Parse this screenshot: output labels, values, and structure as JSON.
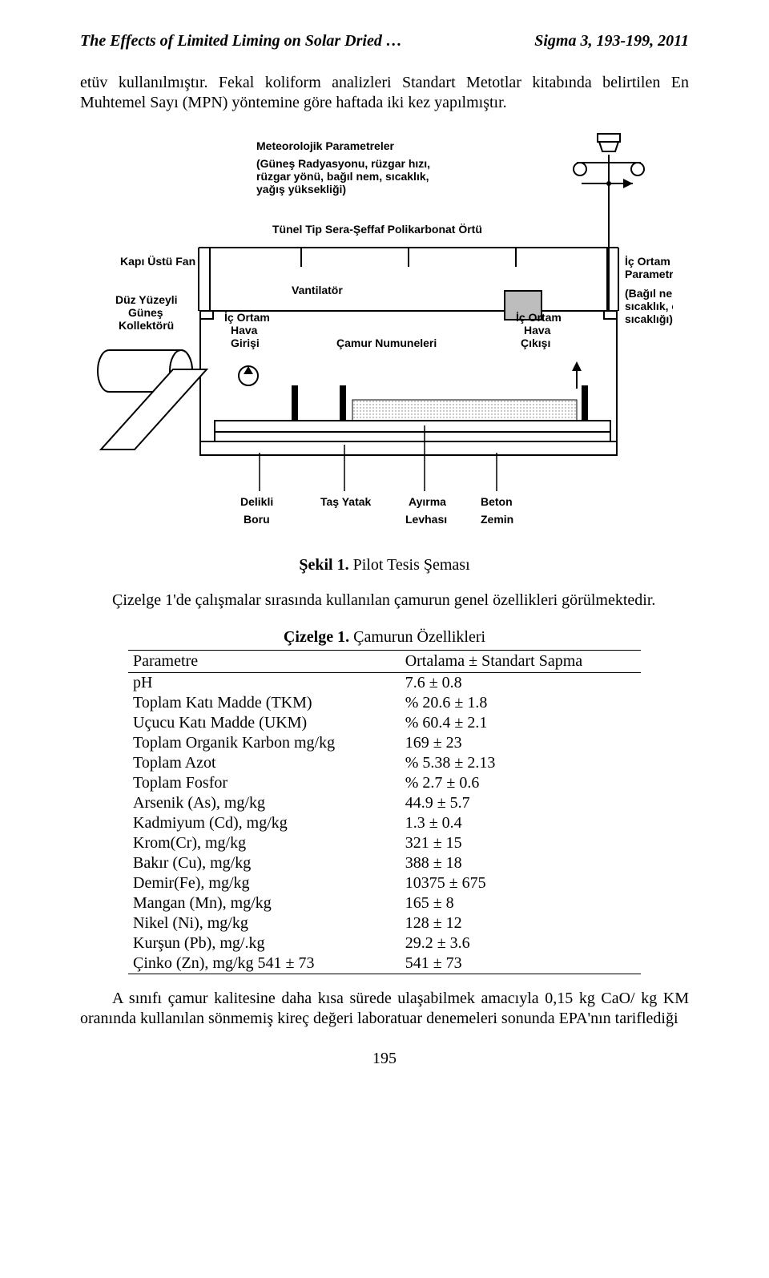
{
  "header": {
    "title_left": "The Effects of Limited Liming on Solar Dried …",
    "title_right": "Sigma 3, 193-199, 2011"
  },
  "paragraph1": "etüv kullanılmıştır. Fekal koliform analizleri Standart Metotlar kitabında belirtilen En Muhtemel Sayı (MPN) yöntemine göre haftada iki kez yapılmıştır.",
  "diagram": {
    "meteo_title": "Meteorolojik Parametreler",
    "meteo_sub1": "(Güneş Radyasyonu, rüzgar hızı,",
    "meteo_sub2": "rüzgar yönü, bağıl nem, sıcaklık,",
    "meteo_sub3": "yağış yüksekliği)",
    "tunnel": "Tünel Tip Sera-Şeffaf Polikarbonat Örtü",
    "fan": "Kapı Üstü Fan",
    "collector1": "Düz Yüzeyli",
    "collector2": "Güneş",
    "collector3": "Kollektörü",
    "ventilator": "Vantilatör",
    "air_in1": "İç Ortam",
    "air_in2": "Hava",
    "air_in3": "Girişi",
    "sludge": "Çamur Numuneleri",
    "air_out1": "İç Ortam",
    "air_out2": "Hava",
    "air_out3": "Çıkışı",
    "params1": "İç Ortam",
    "params2": "Parametreleri",
    "params3": "(Bağıl nem,",
    "params4": "sıcaklık, çamur",
    "params5": "sıcaklığı)",
    "bottom1a": "Delikli",
    "bottom1b": "Boru",
    "bottom2": "Taş Yatak",
    "bottom3a": "Ayırma",
    "bottom3b": "Levhası",
    "bottom4a": "Beton",
    "bottom4b": "Zemin",
    "caption": "Şekil 1. Pilot Tesis Şeması",
    "colors": {
      "stroke": "#000000",
      "fill_bg": "#ffffff",
      "fill_hatch": "#e8e8e8",
      "fill_grey": "#bdbdbd"
    }
  },
  "paragraph2": "Çizelge 1'de çalışmalar sırasında kullanılan çamurun genel özellikleri görülmektedir.",
  "table": {
    "title": "Çizelge 1. Çamurun Özellikleri",
    "col1": "Parametre",
    "col2": "Ortalama ± Standart Sapma",
    "rows": [
      {
        "p": "pH",
        "v": "7.6 ± 0.8"
      },
      {
        "p": "Toplam Katı Madde (TKM)",
        "v": "% 20.6 ± 1.8"
      },
      {
        "p": "Uçucu Katı Madde (UKM)",
        "v": "% 60.4 ± 2.1"
      },
      {
        "p": "Toplam Organik Karbon mg/kg",
        "v": "169 ± 23"
      },
      {
        "p": "Toplam Azot",
        "v": "% 5.38 ± 2.13"
      },
      {
        "p": "Toplam Fosfor",
        "v": "% 2.7 ± 0.6"
      },
      {
        "p": "Arsenik (As), mg/kg",
        "v": "44.9 ± 5.7"
      },
      {
        "p": "Kadmiyum (Cd), mg/kg",
        "v": "1.3 ± 0.4"
      },
      {
        "p": "Krom(Cr), mg/kg",
        "v": "321 ± 15"
      },
      {
        "p": "Bakır (Cu), mg/kg",
        "v": "388 ± 18"
      },
      {
        "p": "Demir(Fe), mg/kg",
        "v": "10375 ± 675"
      },
      {
        "p": "Mangan (Mn), mg/kg",
        "v": "165 ± 8"
      },
      {
        "p": "Nikel (Ni), mg/kg",
        "v": "128 ± 12"
      },
      {
        "p": "Kurşun (Pb), mg/.kg",
        "v": "29.2 ± 3.6"
      },
      {
        "p": "Çinko (Zn), mg/kg 541 ± 73",
        "v": "541 ± 73"
      }
    ]
  },
  "paragraph3": "A sınıfı çamur kalitesine daha kısa sürede ulaşabilmek amacıyla 0,15 kg CaO/ kg KM oranında kullanılan sönmemiş kireç değeri laboratuar denemeleri sonunda EPA'nın tariflediği",
  "page_number": "195"
}
